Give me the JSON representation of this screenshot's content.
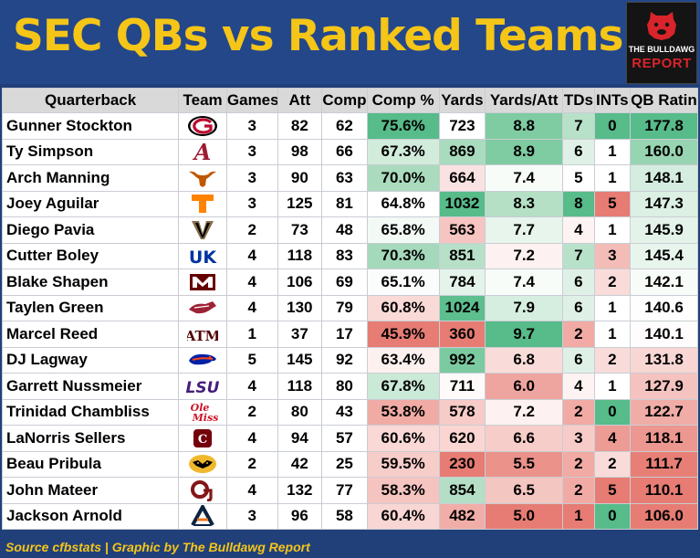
{
  "title": "SEC QBs vs Ranked Teams",
  "logo": {
    "line1": "THE BULLDAWG",
    "line2": "REPORT",
    "icon": "bulldog-icon"
  },
  "columns": [
    "Quarterback",
    "Team",
    "Games",
    "Att",
    "Comp",
    "Comp %",
    "Yards",
    "Yards/Att",
    "TDs",
    "INTs",
    "QB Rating"
  ],
  "rows": [
    {
      "qb": "Gunner Stockton",
      "team": "Georgia",
      "logo": "georgia-logo",
      "games": "3",
      "att": "82",
      "comp": "62",
      "comp_pct": "75.6%",
      "yards": "723",
      "ypa": "8.8",
      "tds": "7",
      "ints": "0",
      "rating": "177.8",
      "colors": {
        "comp_pct": "#57bb8a",
        "yards": "#ffffff",
        "ypa": "#7fcba2",
        "tds": "#b8e1c9",
        "ints": "#57bb8a",
        "rating": "#57bb8a"
      }
    },
    {
      "qb": "Ty Simpson",
      "team": "Alabama",
      "logo": "alabama-logo",
      "games": "3",
      "att": "98",
      "comp": "66",
      "comp_pct": "67.3%",
      "yards": "869",
      "ypa": "8.9",
      "tds": "6",
      "ints": "1",
      "rating": "160.0",
      "colors": {
        "comp_pct": "#d2ecdc",
        "yards": "#a9dbbe",
        "ypa": "#7fcba2",
        "tds": "#dff1e6",
        "ints": "#ffffff",
        "rating": "#97d4b1"
      }
    },
    {
      "qb": "Arch Manning",
      "team": "Texas",
      "logo": "texas-logo",
      "games": "3",
      "att": "90",
      "comp": "63",
      "comp_pct": "70.0%",
      "yards": "664",
      "ypa": "7.4",
      "tds": "5",
      "ints": "1",
      "rating": "148.1",
      "colors": {
        "comp_pct": "#aadbbe",
        "yards": "#fbe2e2",
        "ypa": "#f7fcf9",
        "tds": "#ffffff",
        "ints": "#ffffff",
        "rating": "#d4ede0"
      }
    },
    {
      "qb": "Joey Aguilar",
      "team": "Tennessee",
      "logo": "tennessee-logo",
      "games": "3",
      "att": "125",
      "comp": "81",
      "comp_pct": "64.8%",
      "yards": "1032",
      "ypa": "8.3",
      "tds": "8",
      "ints": "5",
      "rating": "147.3",
      "colors": {
        "comp_pct": "#ffffff",
        "yards": "#57bb8a",
        "ypa": "#b5e0c6",
        "tds": "#57bb8a",
        "ints": "#e67c73",
        "rating": "#dcf0e4"
      }
    },
    {
      "qb": "Diego Pavia",
      "team": "Vanderbilt",
      "logo": "vanderbilt-logo",
      "games": "2",
      "att": "73",
      "comp": "48",
      "comp_pct": "65.8%",
      "yards": "563",
      "ypa": "7.7",
      "tds": "4",
      "ints": "1",
      "rating": "145.9",
      "colors": {
        "comp_pct": "#f3faf6",
        "yards": "#f6c5c1",
        "ypa": "#e7f5ec",
        "tds": "#fdf3f2",
        "ints": "#ffffff",
        "rating": "#e4f3ea"
      }
    },
    {
      "qb": "Cutter Boley",
      "team": "Kentucky",
      "logo": "kentucky-logo",
      "games": "4",
      "att": "118",
      "comp": "83",
      "comp_pct": "70.3%",
      "yards": "851",
      "ypa": "7.2",
      "tds": "7",
      "ints": "3",
      "rating": "145.4",
      "colors": {
        "comp_pct": "#a5d9bb",
        "yards": "#b7e0c8",
        "ypa": "#fdf2f1",
        "tds": "#b8e1c9",
        "ints": "#f4bcb7",
        "rating": "#e8f5ed"
      }
    },
    {
      "qb": "Blake Shapen",
      "team": "Mississippi State",
      "logo": "mississippi-state-logo",
      "games": "4",
      "att": "106",
      "comp": "69",
      "comp_pct": "65.1%",
      "yards": "784",
      "ypa": "7.4",
      "tds": "6",
      "ints": "2",
      "rating": "142.1",
      "colors": {
        "comp_pct": "#fbfdfc",
        "yards": "#e5f4eb",
        "ypa": "#f7fcf9",
        "tds": "#dff1e6",
        "ints": "#f9dcd9",
        "rating": "#f8fcf9"
      }
    },
    {
      "qb": "Taylen Green",
      "team": "Arkansas",
      "logo": "arkansas-logo",
      "games": "4",
      "att": "130",
      "comp": "79",
      "comp_pct": "60.8%",
      "yards": "1024",
      "ypa": "7.9",
      "tds": "6",
      "ints": "1",
      "rating": "140.6",
      "colors": {
        "comp_pct": "#f9dad7",
        "yards": "#5dbe8e",
        "ypa": "#d6eedf",
        "tds": "#dff1e6",
        "ints": "#ffffff",
        "rating": "#fffefe"
      }
    },
    {
      "qb": "Marcel Reed",
      "team": "Texas A&M",
      "logo": "texas-am-logo",
      "games": "1",
      "att": "37",
      "comp": "17",
      "comp_pct": "45.9%",
      "yards": "360",
      "ypa": "9.7",
      "tds": "2",
      "ints": "1",
      "rating": "140.1",
      "colors": {
        "comp_pct": "#e67c73",
        "yards": "#e67c73",
        "ypa": "#57bb8a",
        "tds": "#f1aaa4",
        "ints": "#ffffff",
        "rating": "#fefcfc"
      }
    },
    {
      "qb": "DJ Lagway",
      "team": "Florida",
      "logo": "florida-logo",
      "games": "5",
      "att": "145",
      "comp": "92",
      "comp_pct": "63.4%",
      "yards": "992",
      "ypa": "6.8",
      "tds": "6",
      "ints": "2",
      "rating": "131.8",
      "colors": {
        "comp_pct": "#fdf1f0",
        "yards": "#7ccaa0",
        "ypa": "#f9dcd9",
        "tds": "#dff1e6",
        "ints": "#f9dcd9",
        "rating": "#f8d6d3"
      }
    },
    {
      "qb": "Garrett Nussmeier",
      "team": "LSU",
      "logo": "lsu-logo",
      "games": "4",
      "att": "118",
      "comp": "80",
      "comp_pct": "67.8%",
      "yards": "711",
      "ypa": "6.0",
      "tds": "4",
      "ints": "1",
      "rating": "127.9",
      "colors": {
        "comp_pct": "#cbe9d7",
        "yards": "#fefafa",
        "ypa": "#efa59f",
        "tds": "#fdf3f2",
        "ints": "#ffffff",
        "rating": "#f4c3bf"
      }
    },
    {
      "qb": "Trinidad Chambliss",
      "team": "Ole Miss",
      "logo": "ole-miss-logo",
      "games": "2",
      "att": "80",
      "comp": "43",
      "comp_pct": "53.8%",
      "yards": "578",
      "ypa": "7.2",
      "tds": "2",
      "ints": "0",
      "rating": "122.7",
      "colors": {
        "comp_pct": "#f0aba5",
        "yards": "#f7cbc7",
        "ypa": "#fdf2f1",
        "tds": "#f1aaa4",
        "ints": "#57bb8a",
        "rating": "#f0aca6"
      }
    },
    {
      "qb": "LaNorris Sellers",
      "team": "South Carolina",
      "logo": "south-carolina-logo",
      "games": "4",
      "att": "94",
      "comp": "57",
      "comp_pct": "60.6%",
      "yards": "620",
      "ypa": "6.6",
      "tds": "3",
      "ints": "4",
      "rating": "118.1",
      "colors": {
        "comp_pct": "#f9d8d5",
        "yards": "#fad5d2",
        "ypa": "#f6cdc9",
        "tds": "#f7ccc8",
        "ints": "#ed9c95",
        "rating": "#ec9790"
      }
    },
    {
      "qb": "Beau Pribula",
      "team": "Missouri",
      "logo": "missouri-logo",
      "games": "2",
      "att": "42",
      "comp": "25",
      "comp_pct": "59.5%",
      "yards": "230",
      "ypa": "5.5",
      "tds": "2",
      "ints": "2",
      "rating": "111.7",
      "colors": {
        "comp_pct": "#f7cdc9",
        "yards": "#e67c73",
        "ypa": "#eb928b",
        "tds": "#f1aaa4",
        "ints": "#f9dcd9",
        "rating": "#e87f76"
      }
    },
    {
      "qb": "John Mateer",
      "team": "Oklahoma",
      "logo": "oklahoma-logo",
      "games": "4",
      "att": "132",
      "comp": "77",
      "comp_pct": "58.3%",
      "yards": "854",
      "ypa": "6.5",
      "tds": "2",
      "ints": "5",
      "rating": "110.1",
      "colors": {
        "comp_pct": "#f6c4c0",
        "yards": "#b4dfc6",
        "ypa": "#f4c6c2",
        "tds": "#f1aaa4",
        "ints": "#e67c73",
        "rating": "#e67c73"
      }
    },
    {
      "qb": "Jackson Arnold",
      "team": "Auburn",
      "logo": "auburn-logo",
      "games": "3",
      "att": "96",
      "comp": "58",
      "comp_pct": "60.4%",
      "yards": "482",
      "ypa": "5.0",
      "tds": "1",
      "ints": "0",
      "rating": "106.0",
      "colors": {
        "comp_pct": "#f8d6d3",
        "yards": "#f1ada7",
        "ypa": "#e67c73",
        "tds": "#e67c73",
        "ints": "#57bb8a",
        "rating": "#e67c73"
      }
    }
  ],
  "footer": "Source cfbstats | Graphic by The Bulldawg Report"
}
